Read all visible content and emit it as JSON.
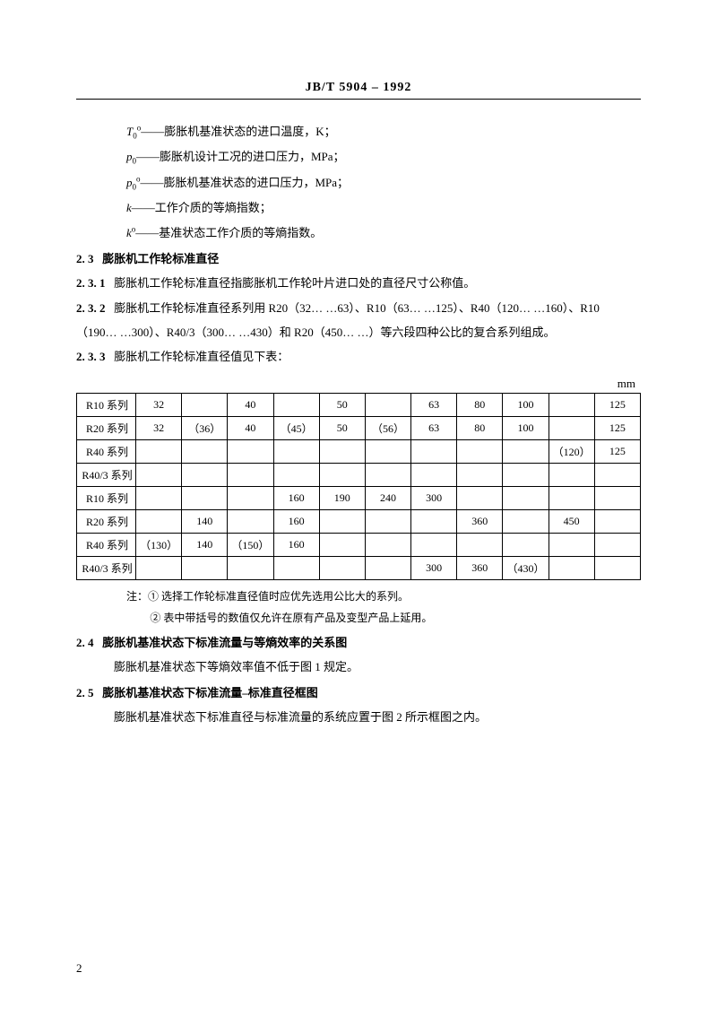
{
  "header": {
    "title": "JB/T  5904 – 1992"
  },
  "definitions": [
    {
      "symHtml": "<span class='italic'>T</span><span class='sub'>0</span><span class='sup'>o</span>",
      "dash": "——",
      "text": "膨胀机基准状态的进口温度，K；"
    },
    {
      "symHtml": "<span class='italic'>p</span><span class='sub'>0</span>",
      "dash": "——",
      "text": "膨胀机设计工况的进口压力，MPa；"
    },
    {
      "symHtml": "<span class='italic'>p</span><span class='sub'>0</span><span class='sup'>o</span>",
      "dash": "——",
      "text": "膨胀机基准状态的进口压力，MPa；"
    },
    {
      "symHtml": "<span class='italic'>k</span>",
      "dash": "——",
      "text": "工作介质的等熵指数；"
    },
    {
      "symHtml": "<span class='italic'>k</span><span class='sup'>o</span>",
      "dash": "——",
      "text": "基准状态工作介质的等熵指数。"
    }
  ],
  "s23": {
    "num": "2. 3",
    "title": "膨胀机工作轮标准直径"
  },
  "s231": {
    "num": "2. 3. 1",
    "text": "膨胀机工作轮标准直径指膨胀机工作轮叶片进口处的直径尺寸公称值。"
  },
  "s232": {
    "num": "2. 3. 2",
    "line1": "膨胀机工作轮标准直径系列用 R20（32… …63）、R10（63… …125）、R40（120… …160）、R10",
    "line2": "（190… …300）、R40/3（300… …430）和 R20（450… …）等六段四种公比的复合系列组成。"
  },
  "s233": {
    "num": "2. 3. 3",
    "text": "膨胀机工作轮标准直径值见下表："
  },
  "table": {
    "unit": "mm",
    "colWidths": {
      "label": 66
    },
    "rows": [
      {
        "label": "R10 系列",
        "cells": [
          "32",
          "",
          "40",
          "",
          "50",
          "",
          "63",
          "80",
          "100",
          "",
          "125"
        ]
      },
      {
        "label": "R20 系列",
        "cells": [
          "32",
          "（36）",
          "40",
          "（45）",
          "50",
          "（56）",
          "63",
          "80",
          "100",
          "",
          "125"
        ]
      },
      {
        "label": "R40 系列",
        "cells": [
          "",
          "",
          "",
          "",
          "",
          "",
          "",
          "",
          "",
          "（120）",
          "125"
        ]
      },
      {
        "label": "R40/3 系列",
        "cells": [
          "",
          "",
          "",
          "",
          "",
          "",
          "",
          "",
          "",
          "",
          ""
        ]
      },
      {
        "label": "R10 系列",
        "cells": [
          "",
          "",
          "",
          "160",
          "190",
          "240",
          "300",
          "",
          "",
          "",
          ""
        ]
      },
      {
        "label": "R20 系列",
        "cells": [
          "",
          "140",
          "",
          "160",
          "",
          "",
          "",
          "360",
          "",
          "450",
          ""
        ]
      },
      {
        "label": "R40 系列",
        "cells": [
          "（130）",
          "140",
          "（150）",
          "160",
          "",
          "",
          "",
          "",
          "",
          "",
          ""
        ]
      },
      {
        "label": "R40/3 系列",
        "cells": [
          "",
          "",
          "",
          "",
          "",
          "",
          "300",
          "360",
          "（430）",
          "",
          ""
        ]
      }
    ]
  },
  "notes": {
    "prefix": "注：",
    "items": [
      "① 选择工作轮标准直径值时应优先选用公比大的系列。",
      "② 表中带括号的数值仅允许在原有产品及变型产品上延用。"
    ]
  },
  "s24": {
    "num": "2. 4",
    "title": "膨胀机基准状态下标准流量与等熵效率的关系图",
    "body": "膨胀机基准状态下等熵效率值不低于图 1 规定。"
  },
  "s25": {
    "num": "2. 5",
    "title": "膨胀机基准状态下标准流量–标准直径框图",
    "body": "膨胀机基准状态下标准直径与标准流量的系统应置于图 2 所示框图之内。"
  },
  "pageNumber": "2"
}
